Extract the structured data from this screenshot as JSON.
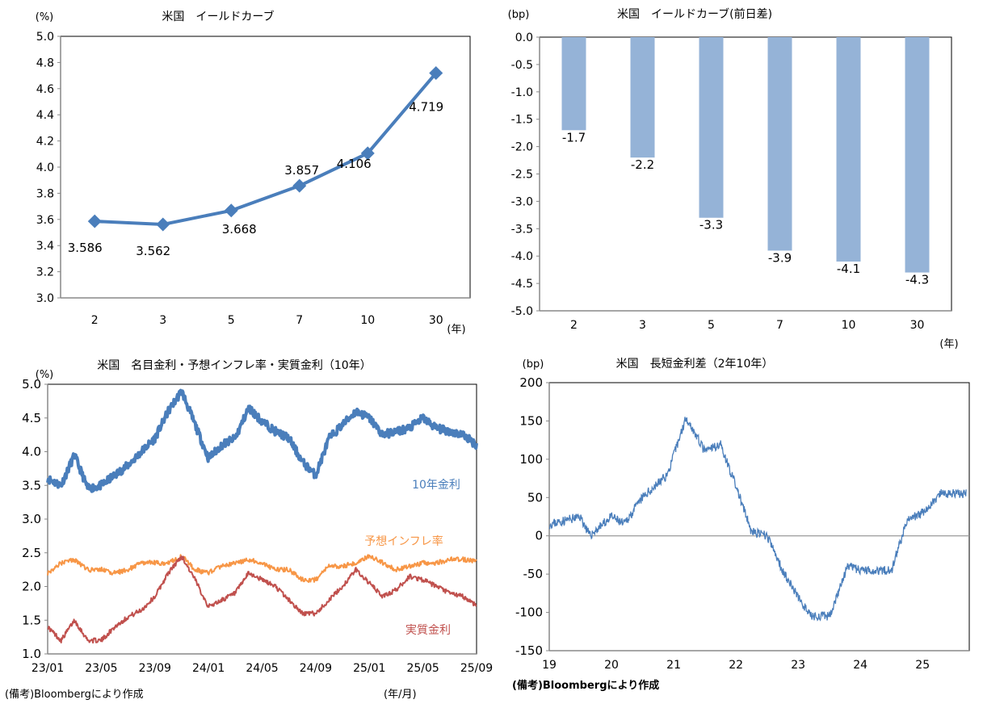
{
  "chart_data": [
    {
      "id": "yield-curve",
      "type": "line",
      "title": "米国　イールドカーブ",
      "ylabel": "(%)",
      "xlabel": "(年)",
      "categories": [
        "2",
        "3",
        "5",
        "7",
        "10",
        "30"
      ],
      "values": [
        3.586,
        3.562,
        3.668,
        3.857,
        4.106,
        4.719
      ],
      "data_labels": [
        "3.586",
        "3.562",
        "3.668",
        "3.857",
        "4.106",
        "4.719"
      ],
      "ylim": [
        3.0,
        5.0
      ],
      "yticks": [
        "3.0",
        "3.2",
        "3.4",
        "3.6",
        "3.8",
        "4.0",
        "4.2",
        "4.4",
        "4.6",
        "4.8",
        "5.0"
      ],
      "color": "#4a7ebb"
    },
    {
      "id": "yield-curve-change",
      "type": "bar",
      "title": "米国　イールドカーブ(前日差)",
      "ylabel": "(bp)",
      "xlabel": "(年)",
      "categories": [
        "2",
        "3",
        "5",
        "7",
        "10",
        "30"
      ],
      "values": [
        -1.7,
        -2.2,
        -3.3,
        -3.9,
        -4.1,
        -4.3
      ],
      "data_labels": [
        "-1.7",
        "-2.2",
        "-3.3",
        "-3.9",
        "-4.1",
        "-4.3"
      ],
      "ylim": [
        -5.0,
        0.0
      ],
      "yticks": [
        "0.0",
        "-0.5",
        "-1.0",
        "-1.5",
        "-2.0",
        "-2.5",
        "-3.0",
        "-3.5",
        "-4.0",
        "-4.5",
        "-5.0"
      ],
      "color": "#95b3d7"
    },
    {
      "id": "nominal-bei-real",
      "type": "line",
      "title": "米国　名目金利・予想インフレ率・実質金利（10年）",
      "ylabel": "(%)",
      "xlabel": "(年/月)",
      "ylim": [
        1.0,
        5.0
      ],
      "yticks": [
        "1.0",
        "1.5",
        "2.0",
        "2.5",
        "3.0",
        "3.5",
        "4.0",
        "4.5",
        "5.0"
      ],
      "xticks": [
        "23/01",
        "23/05",
        "23/09",
        "24/01",
        "24/05",
        "24/09",
        "25/01",
        "25/05",
        "25/09"
      ],
      "x_months": [
        0,
        1,
        2,
        3,
        4,
        5,
        6,
        7,
        8,
        9,
        10,
        11,
        12,
        13,
        14,
        15,
        16,
        17,
        18,
        19,
        20,
        21,
        22,
        23,
        24,
        25,
        26,
        27,
        28,
        29,
        30,
        31,
        32
      ],
      "series": [
        {
          "name": "10年金利",
          "color": "#4a7ebb",
          "values": [
            3.6,
            3.5,
            3.95,
            3.45,
            3.5,
            3.65,
            3.8,
            4.0,
            4.2,
            4.6,
            4.9,
            4.4,
            3.9,
            4.1,
            4.2,
            4.65,
            4.45,
            4.3,
            4.2,
            3.85,
            3.65,
            4.2,
            4.4,
            4.6,
            4.5,
            4.25,
            4.3,
            4.35,
            4.5,
            4.35,
            4.3,
            4.25,
            4.1
          ]
        },
        {
          "name": "予想インフレ率",
          "color": "#f79646",
          "values": [
            2.2,
            2.35,
            2.4,
            2.25,
            2.25,
            2.2,
            2.25,
            2.35,
            2.35,
            2.35,
            2.45,
            2.25,
            2.2,
            2.3,
            2.35,
            2.4,
            2.35,
            2.25,
            2.25,
            2.1,
            2.1,
            2.3,
            2.3,
            2.35,
            2.45,
            2.35,
            2.25,
            2.3,
            2.35,
            2.35,
            2.4,
            2.4,
            2.38
          ]
        },
        {
          "name": "実質金利",
          "color": "#c0504d",
          "values": [
            1.4,
            1.2,
            1.5,
            1.2,
            1.2,
            1.4,
            1.55,
            1.65,
            1.85,
            2.2,
            2.45,
            2.1,
            1.7,
            1.8,
            1.9,
            2.2,
            2.1,
            2.0,
            1.8,
            1.6,
            1.6,
            1.8,
            2.0,
            2.25,
            2.05,
            1.85,
            1.95,
            2.15,
            2.1,
            2.0,
            1.9,
            1.85,
            1.72
          ]
        }
      ]
    },
    {
      "id": "term-spread",
      "type": "line",
      "title": "米国　長短金利差（2年10年）",
      "ylabel": "(bp)",
      "ylim": [
        -150,
        200
      ],
      "yticks": [
        "200",
        "150",
        "100",
        "50",
        "0",
        "-50",
        "-100",
        "-150"
      ],
      "xticks": [
        "19",
        "20",
        "21",
        "22",
        "23",
        "24",
        "25"
      ],
      "x_years": [
        2019.0,
        2019.5,
        2019.65,
        2020.0,
        2020.2,
        2020.5,
        2020.9,
        2021.2,
        2021.5,
        2021.75,
        2022.0,
        2022.25,
        2022.5,
        2022.75,
        2023.0,
        2023.2,
        2023.5,
        2023.8,
        2024.0,
        2024.5,
        2024.75,
        2025.0,
        2025.3,
        2025.7
      ],
      "series": [
        {
          "name": "長短金利差",
          "color": "#4a7ebb",
          "values": [
            15,
            25,
            0,
            25,
            15,
            50,
            80,
            155,
            110,
            120,
            65,
            5,
            0,
            -45,
            -80,
            -105,
            -105,
            -40,
            -45,
            -45,
            20,
            30,
            55,
            55
          ]
        }
      ]
    }
  ],
  "notes": {
    "source_left": "(備考)Bloombergにより作成",
    "source_right": "(備考)Bloombergにより作成",
    "xunit_bottom_left": "(年/月)"
  }
}
